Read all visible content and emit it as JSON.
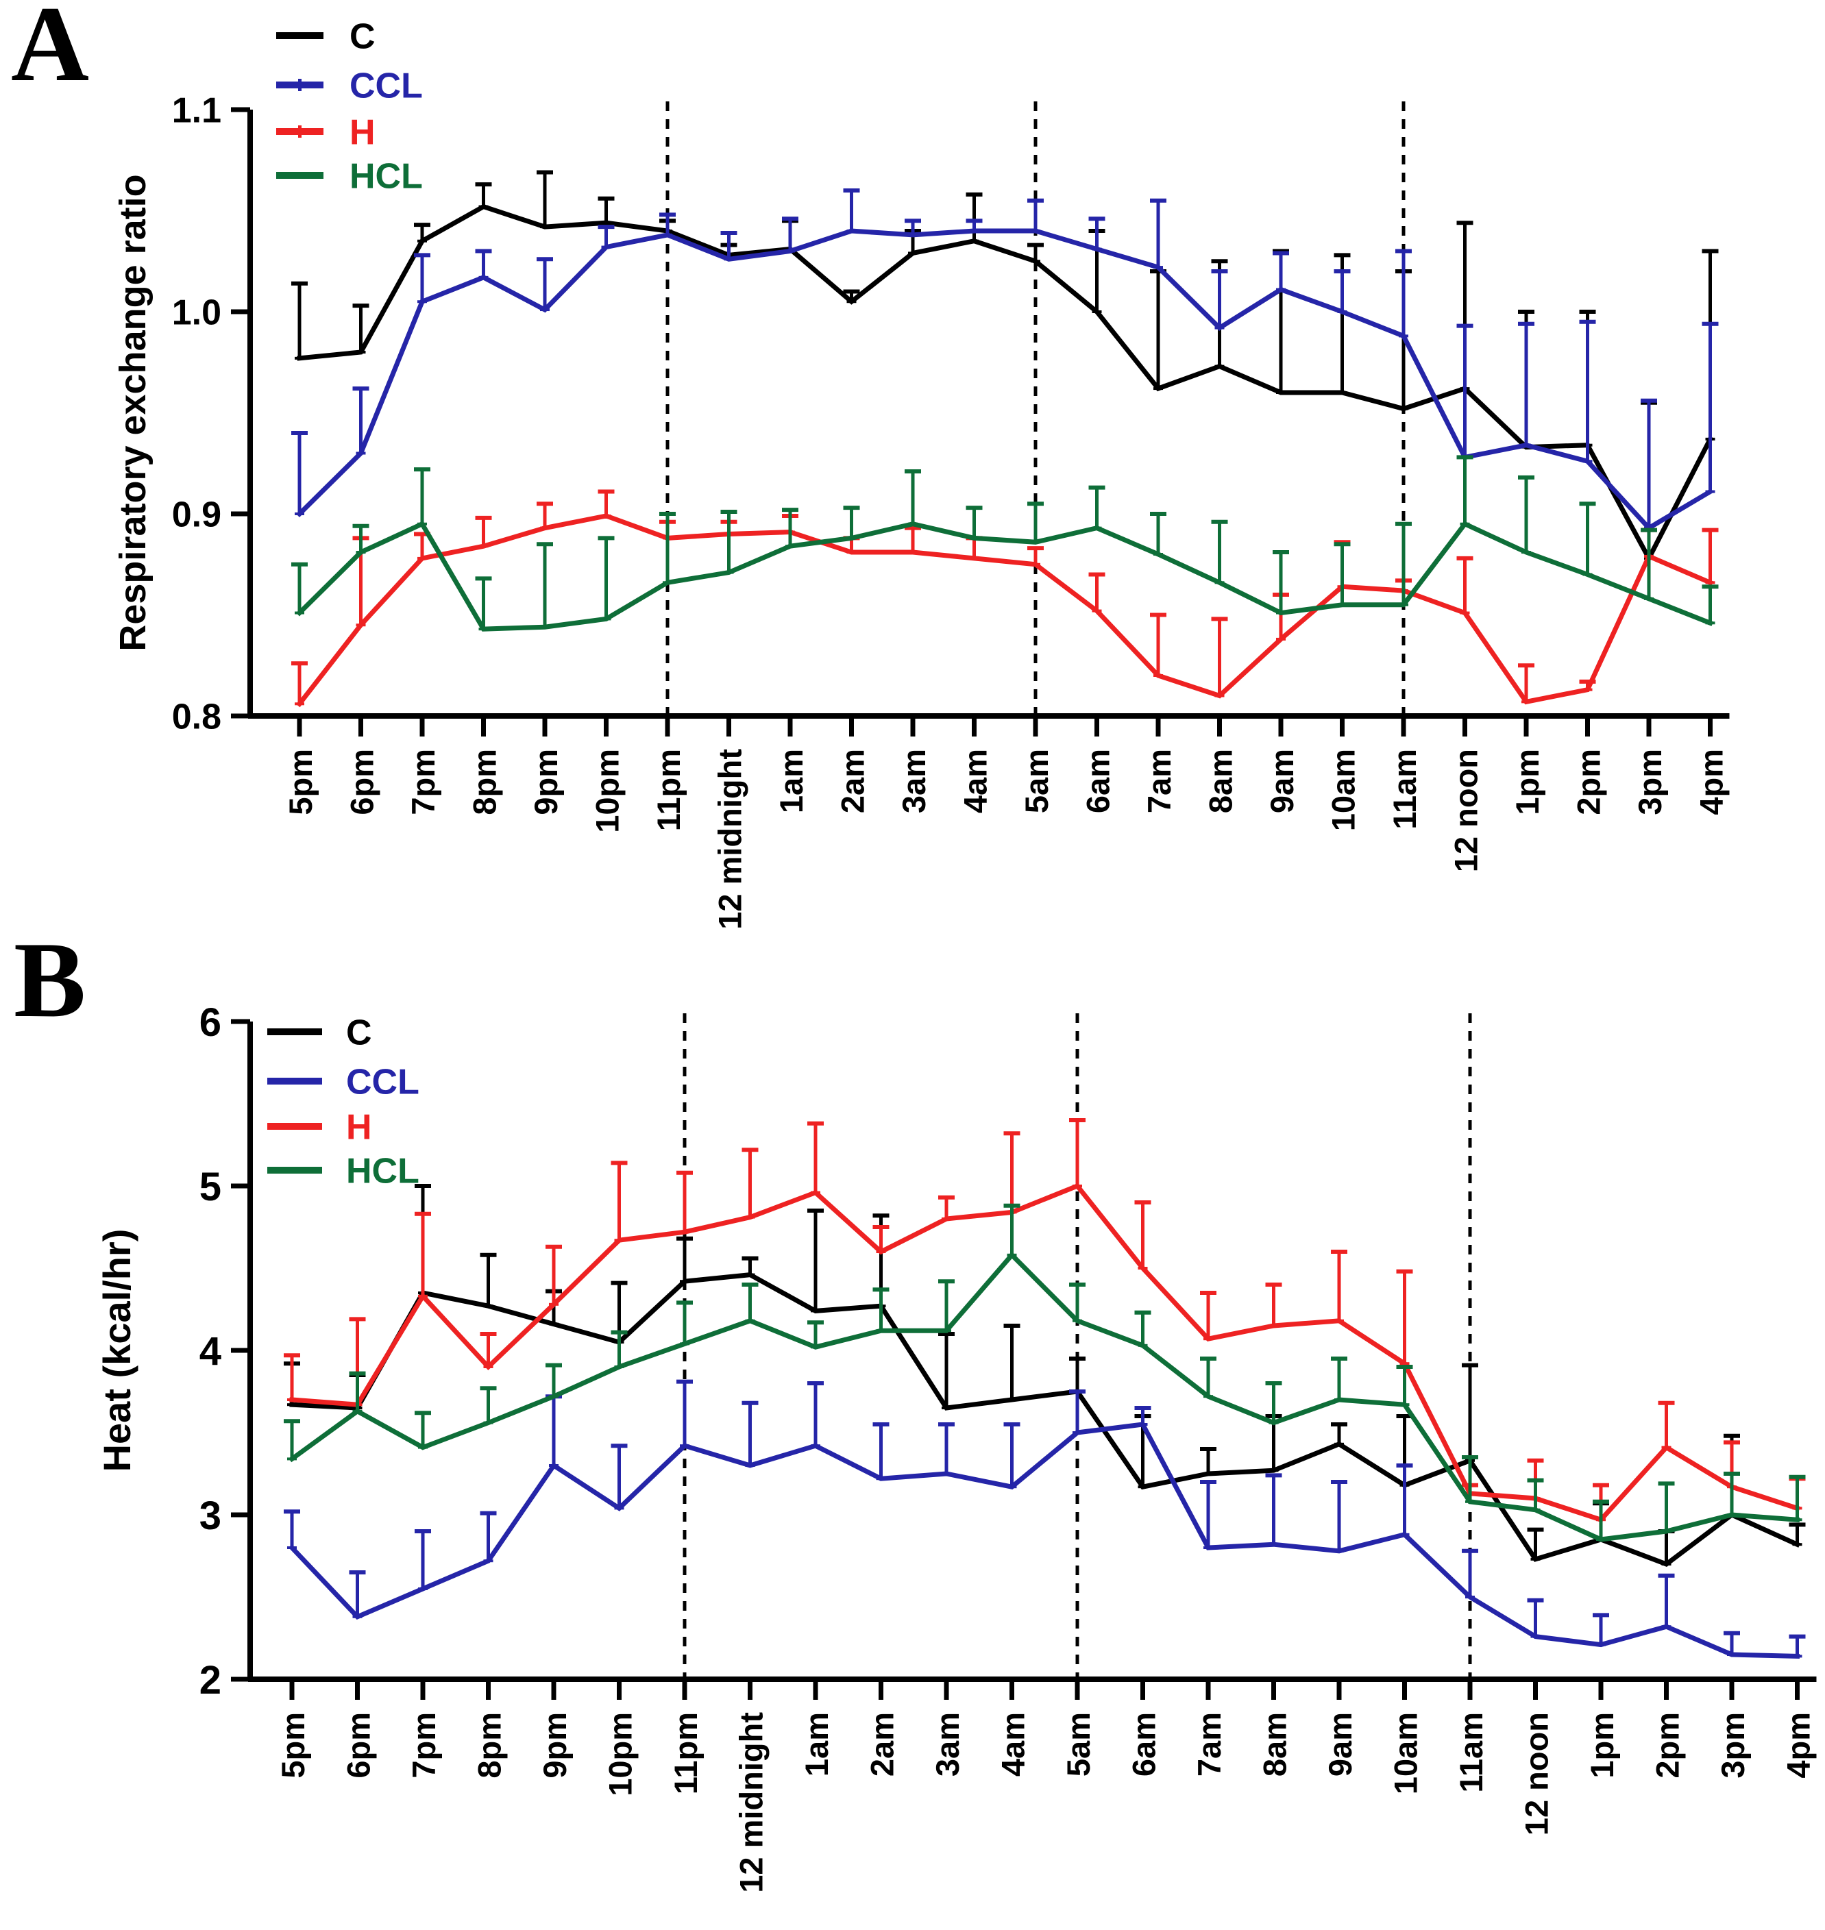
{
  "panels": {
    "a_letter": "A",
    "b_letter": "B"
  },
  "colors": {
    "C": "#000000",
    "CCL": "#2525a8",
    "H": "#ee2222",
    "HCL": "#0e6e38"
  },
  "chart_data": [
    {
      "type": "line",
      "panel": "A",
      "ylabel": "Respiratory exchange ratio",
      "ylim": [
        0.8,
        1.1
      ],
      "yticks": [
        1.1,
        1.0,
        0.9,
        0.8
      ],
      "ytick_labels": [
        "1.1",
        "1.0",
        "0.9",
        "0.8"
      ],
      "grid": false,
      "legend_position": "top-left-inside",
      "error_bars": "upper",
      "dashed_lines_at": [
        "11pm",
        "5am",
        "11am"
      ],
      "categories": [
        "5pm",
        "6pm",
        "7pm",
        "8pm",
        "9pm",
        "10pm",
        "11pm",
        "12 midnight",
        "1am",
        "2am",
        "3am",
        "4am",
        "5am",
        "6am",
        "7am",
        "8am",
        "9am",
        "10am",
        "11am",
        "12 noon",
        "1pm",
        "2pm",
        "3pm",
        "4pm"
      ],
      "series": [
        {
          "name": "C",
          "color_key": "C",
          "legend_tick": false,
          "values": [
            0.977,
            0.98,
            1.035,
            1.052,
            1.042,
            1.044,
            1.04,
            1.028,
            1.031,
            1.005,
            1.029,
            1.035,
            1.025,
            1.0,
            0.962,
            0.973,
            0.96,
            0.96,
            0.952,
            0.962,
            0.933,
            0.934,
            0.878,
            0.937
          ],
          "err_up": [
            0.037,
            0.023,
            0.008,
            0.011,
            0.027,
            0.012,
            0.005,
            0.005,
            0.014,
            0.005,
            0.011,
            0.023,
            0.008,
            0.04,
            0.058,
            0.052,
            0.07,
            0.068,
            0.068,
            0.082,
            0.067,
            0.066,
            0.077,
            0.093
          ]
        },
        {
          "name": "CCL",
          "color_key": "CCL",
          "legend_tick": true,
          "values": [
            0.9,
            0.93,
            1.005,
            1.017,
            1.001,
            1.032,
            1.038,
            1.026,
            1.03,
            1.04,
            1.038,
            1.04,
            1.04,
            1.031,
            1.022,
            0.992,
            1.011,
            1.0,
            0.988,
            0.928,
            0.934,
            0.926,
            0.893,
            0.911
          ],
          "err_up": [
            0.04,
            0.032,
            0.023,
            0.013,
            0.025,
            0.01,
            0.01,
            0.013,
            0.016,
            0.02,
            0.007,
            0.005,
            0.015,
            0.015,
            0.033,
            0.028,
            0.018,
            0.02,
            0.042,
            0.065,
            0.06,
            0.069,
            0.063,
            0.083
          ]
        },
        {
          "name": "H",
          "color_key": "H",
          "legend_tick": true,
          "values": [
            0.806,
            0.845,
            0.878,
            0.884,
            0.893,
            0.899,
            0.888,
            0.89,
            0.891,
            0.881,
            0.881,
            0.878,
            0.875,
            0.852,
            0.82,
            0.81,
            0.838,
            0.864,
            0.862,
            0.851,
            0.807,
            0.813,
            0.879,
            0.866
          ],
          "err_up": [
            0.02,
            0.043,
            0.012,
            0.014,
            0.012,
            0.012,
            0.008,
            0.006,
            0.008,
            0.007,
            0.012,
            0.01,
            0.008,
            0.018,
            0.03,
            0.038,
            0.022,
            0.022,
            0.005,
            0.027,
            0.018,
            0.004,
            0.013,
            0.026
          ]
        },
        {
          "name": "HCL",
          "color_key": "HCL",
          "legend_tick": false,
          "values": [
            0.851,
            0.881,
            0.895,
            0.843,
            0.844,
            0.848,
            0.866,
            0.871,
            0.884,
            0.888,
            0.895,
            0.888,
            0.886,
            0.893,
            0.88,
            0.866,
            0.851,
            0.855,
            0.855,
            0.895,
            0.881,
            0.87,
            0.858,
            0.846
          ],
          "err_up": [
            0.024,
            0.013,
            0.027,
            0.025,
            0.041,
            0.04,
            0.034,
            0.03,
            0.018,
            0.015,
            0.026,
            0.015,
            0.019,
            0.02,
            0.02,
            0.03,
            0.03,
            0.03,
            0.04,
            0.033,
            0.037,
            0.035,
            0.034,
            0.018
          ]
        }
      ]
    },
    {
      "type": "line",
      "panel": "B",
      "ylabel": "Heat (kcal/hr)",
      "ylim": [
        2,
        6
      ],
      "yticks": [
        6,
        5,
        4,
        3,
        2
      ],
      "ytick_labels": [
        "6",
        "5",
        "4",
        "3",
        "2"
      ],
      "grid": false,
      "legend_position": "top-left-inside",
      "error_bars": "upper",
      "dashed_lines_at": [
        "11pm",
        "5am",
        "11am"
      ],
      "categories": [
        "5pm",
        "6pm",
        "7pm",
        "8pm",
        "9pm",
        "10pm",
        "11pm",
        "12 midnight",
        "1am",
        "2am",
        "3am",
        "4am",
        "5am",
        "6am",
        "7am",
        "8am",
        "9am",
        "10am",
        "11am",
        "12 noon",
        "1pm",
        "2pm",
        "3pm",
        "4pm"
      ],
      "series": [
        {
          "name": "C",
          "color_key": "C",
          "legend_tick": false,
          "values": [
            3.67,
            3.65,
            4.35,
            4.27,
            4.16,
            4.05,
            4.42,
            4.46,
            4.24,
            4.27,
            3.65,
            3.7,
            3.75,
            3.17,
            3.25,
            3.27,
            3.43,
            3.18,
            3.33,
            2.73,
            2.85,
            2.7,
            3.0,
            2.82
          ],
          "err_up": [
            0.25,
            0.2,
            0.65,
            0.31,
            0.2,
            0.36,
            0.26,
            0.1,
            0.61,
            0.55,
            0.45,
            0.45,
            0.2,
            0.43,
            0.15,
            0.33,
            0.12,
            0.42,
            0.58,
            0.18,
            0.22,
            0.2,
            0.48,
            0.12
          ]
        },
        {
          "name": "CCL",
          "color_key": "CCL",
          "legend_tick": false,
          "values": [
            2.8,
            2.38,
            2.55,
            2.72,
            3.3,
            3.04,
            3.42,
            3.3,
            3.42,
            3.22,
            3.25,
            3.17,
            3.5,
            3.55,
            2.8,
            2.82,
            2.78,
            2.88,
            2.5,
            2.26,
            2.21,
            2.32,
            2.15,
            2.14
          ],
          "err_up": [
            0.22,
            0.27,
            0.35,
            0.29,
            0.42,
            0.38,
            0.39,
            0.38,
            0.38,
            0.33,
            0.3,
            0.38,
            0.25,
            0.1,
            0.4,
            0.42,
            0.42,
            0.42,
            0.28,
            0.22,
            0.18,
            0.31,
            0.13,
            0.12
          ]
        },
        {
          "name": "H",
          "color_key": "H",
          "legend_tick": false,
          "values": [
            3.7,
            3.67,
            4.33,
            3.9,
            4.28,
            4.67,
            4.72,
            4.81,
            4.96,
            4.6,
            4.8,
            4.84,
            5.0,
            4.5,
            4.07,
            4.15,
            4.18,
            3.92,
            3.13,
            3.1,
            2.97,
            3.41,
            3.17,
            3.04
          ],
          "err_up": [
            0.27,
            0.52,
            0.5,
            0.2,
            0.35,
            0.47,
            0.36,
            0.41,
            0.42,
            0.15,
            0.13,
            0.48,
            0.4,
            0.4,
            0.28,
            0.25,
            0.42,
            0.56,
            0.05,
            0.23,
            0.21,
            0.27,
            0.27,
            0.18
          ]
        },
        {
          "name": "HCL",
          "color_key": "HCL",
          "legend_tick": false,
          "values": [
            3.34,
            3.63,
            3.41,
            3.56,
            3.72,
            3.9,
            4.04,
            4.18,
            4.02,
            4.12,
            4.12,
            4.58,
            4.18,
            4.03,
            3.72,
            3.56,
            3.7,
            3.67,
            3.08,
            3.03,
            2.85,
            2.9,
            3.0,
            2.97
          ],
          "err_up": [
            0.23,
            0.23,
            0.21,
            0.21,
            0.19,
            0.21,
            0.25,
            0.22,
            0.15,
            0.25,
            0.3,
            0.3,
            0.22,
            0.2,
            0.23,
            0.24,
            0.25,
            0.23,
            0.27,
            0.18,
            0.23,
            0.29,
            0.25,
            0.26
          ]
        }
      ]
    }
  ]
}
